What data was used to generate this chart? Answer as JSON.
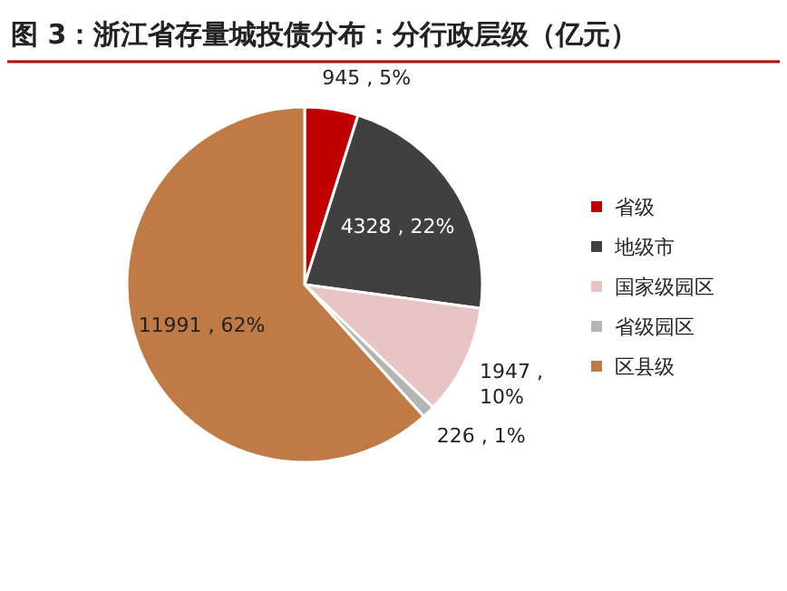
{
  "chart_data": {
    "type": "pie",
    "title": "图 3：浙江省存量城投债分布：分行政层级（亿元）",
    "categories": [
      "省级",
      "地级市",
      "国家级园区",
      "省级园区",
      "区县级"
    ],
    "values": [
      945,
      4328,
      1947,
      226,
      11991
    ],
    "colors": [
      "#c00000",
      "#404040",
      "#e8c4c4",
      "#b4b4b4",
      "#c07a45"
    ],
    "value_labels": [
      "945 , 5%",
      "4328 , 22%",
      "1947 , 10%",
      "226 , 1%",
      "11991 , 62%"
    ],
    "legend": "right"
  }
}
